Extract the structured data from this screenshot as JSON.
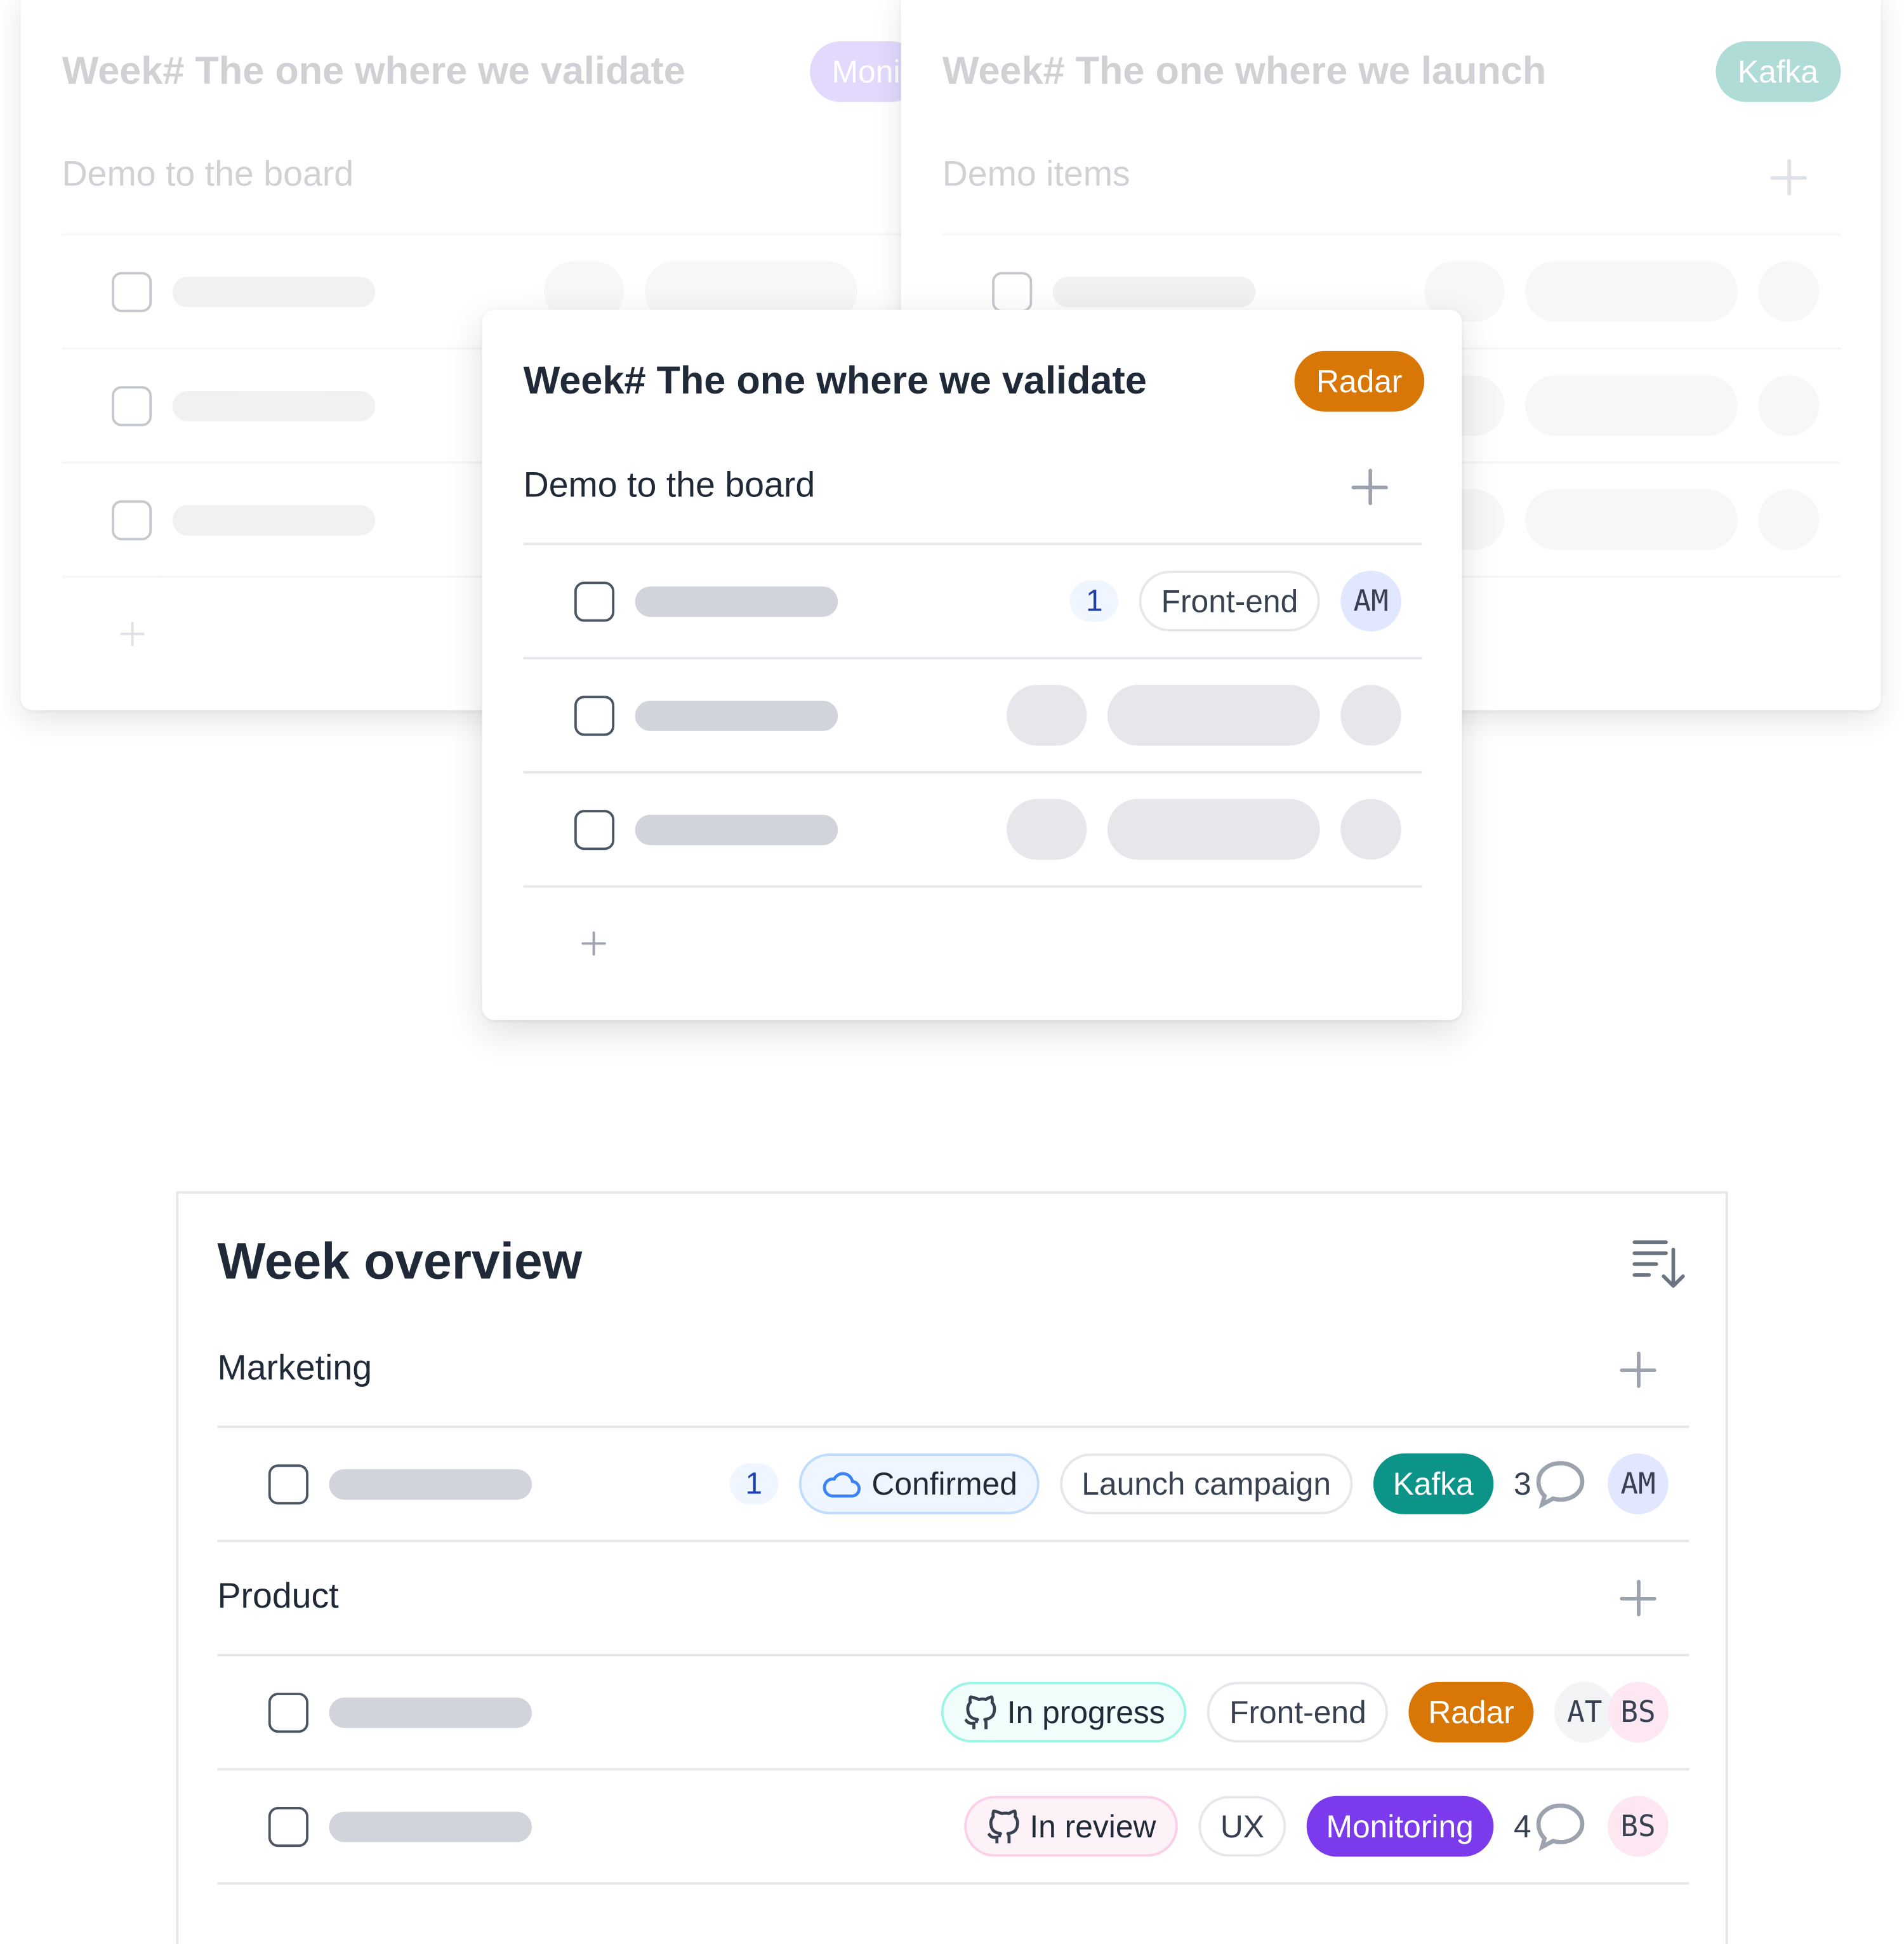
{
  "colors": {
    "radar": "#d97706",
    "kafka": "#0d9488",
    "monitoring": "#7c3aed",
    "kafka_faded": "#5eead4",
    "monitoring_faded": "#c4b5fd"
  },
  "back_left": {
    "title": "Week# The one where we validate",
    "badge": "Moni",
    "section": "Demo to the board"
  },
  "back_right": {
    "title": "Week# The one where we launch",
    "badge": "Kafka",
    "section": "Demo items"
  },
  "front": {
    "title": "Week# The one where we validate",
    "badge": "Radar",
    "section": "Demo to the board",
    "row1": {
      "count": "1",
      "tag": "Front-end",
      "avatar": "AM"
    }
  },
  "overview": {
    "title": "Week overview",
    "sort_icon": "sort-descending-icon",
    "groups": [
      {
        "name": "Marketing",
        "rows": [
          {
            "count": "1",
            "status": "Confirmed",
            "status_icon": "cloud-icon",
            "tag": "Launch campaign",
            "project": "Kafka",
            "comments": "3",
            "avatars": [
              "AM"
            ]
          }
        ]
      },
      {
        "name": "Product",
        "rows": [
          {
            "status": "In progress",
            "status_icon": "github-icon",
            "tag": "Front-end",
            "project": "Radar",
            "avatars": [
              "AT",
              "BS"
            ]
          },
          {
            "status": "In review",
            "status_icon": "github-icon",
            "tag": "UX",
            "project": "Monitoring",
            "comments": "4",
            "avatars": [
              "BS"
            ]
          }
        ]
      }
    ]
  }
}
